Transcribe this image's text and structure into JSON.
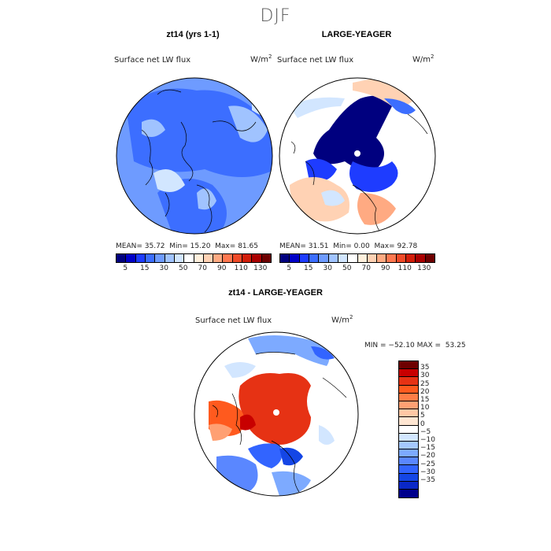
{
  "figure": {
    "title": "DJF"
  },
  "panels": [
    {
      "id": "left",
      "title": "zt14 (yrs 1-1)",
      "variable": "Surface net LW flux",
      "units": "W/m",
      "units_sup": "2",
      "mean_label": "MEAN=",
      "mean": "35.72",
      "min_label": "Min=",
      "min": "15.20",
      "max_label": "Max=",
      "max": "81.65"
    },
    {
      "id": "right",
      "title": "LARGE-YEAGER",
      "variable": "Surface net LW flux",
      "units": "W/m",
      "units_sup": "2",
      "mean_label": "MEAN=",
      "mean": "31.51",
      "min_label": "Min=",
      "min": "0.00",
      "max_label": "Max=",
      "max": "92.78"
    },
    {
      "id": "diff",
      "title": "zt14 - LARGE-YEAGER",
      "variable": "Surface net LW flux",
      "units": "W/m",
      "units_sup": "2",
      "minmax_text": "MIN = −52.10 MAX =  53.25"
    }
  ],
  "colorbar_abs": {
    "colors": [
      "#00007f",
      "#0000c8",
      "#1e3cff",
      "#3c6eff",
      "#6e9bff",
      "#a0c3ff",
      "#d2e6ff",
      "#ffffff",
      "#fff0dc",
      "#ffd2b4",
      "#ffaa82",
      "#ff7850",
      "#f04a28",
      "#d21e0a",
      "#aa0000",
      "#6e0000"
    ],
    "ticks": [
      "5",
      "15",
      "30",
      "50",
      "70",
      "90",
      "110",
      "130"
    ]
  },
  "colorbar_diff": {
    "colors": [
      "#6e0000",
      "#c80000",
      "#e63214",
      "#ff5a1e",
      "#ff7d46",
      "#ffa073",
      "#ffc8a5",
      "#ffe6d2",
      "#ffffff",
      "#d2e6ff",
      "#a5c8ff",
      "#7daaff",
      "#5a87ff",
      "#3264ff",
      "#1446e6",
      "#0a28c8",
      "#00008c"
    ],
    "ticks": [
      "35",
      "30",
      "25",
      "20",
      "15",
      "10",
      "5",
      "0",
      "−5",
      "−10",
      "−15",
      "−20",
      "−25",
      "−30",
      "−35"
    ]
  }
}
